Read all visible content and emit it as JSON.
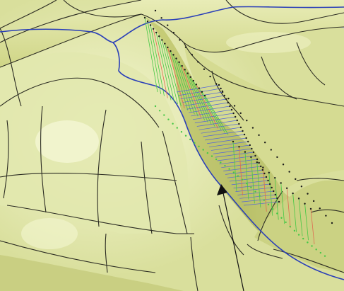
{
  "viewport": {
    "background": "#b9c7d6",
    "surface_color": "#d9df9c",
    "surface_highlight": "#f2f5c8",
    "surface_shadow": "#a9b060",
    "edge_color": "#2b2b22",
    "toolpath_color": "#2a3fb8",
    "hatch_blue": "#5566d8",
    "hatch_green": "#46c846",
    "hatch_red": "#e06a50",
    "point_color": "#1a1a1a",
    "icons": {
      "cursor": "arrow-pointer-icon"
    }
  }
}
